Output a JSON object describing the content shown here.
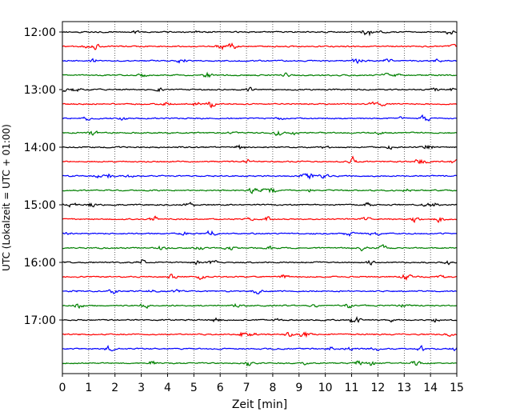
{
  "chart_data": {
    "type": "line",
    "title": "",
    "xlabel": "Zeit  [min]",
    "ylabel": "UTC (Lokalzeit = UTC + 01:00)",
    "xlim": [
      0,
      15
    ],
    "x_ticks": [
      0,
      1,
      2,
      3,
      4,
      5,
      6,
      7,
      8,
      9,
      10,
      11,
      12,
      13,
      14,
      15
    ],
    "x_tick_labels": [
      "0",
      "1",
      "2",
      "3",
      "4",
      "5",
      "6",
      "7",
      "8",
      "9",
      "10",
      "11",
      "12",
      "13",
      "14",
      "15"
    ],
    "y_tick_labels": [
      "12:00",
      "13:00",
      "14:00",
      "15:00",
      "16:00",
      "17:00"
    ],
    "vertical_grid": "dotted",
    "trace_colors": [
      "#000000",
      "#ff0000",
      "#0000ff",
      "#008000"
    ],
    "series": [
      {
        "start": "12:00",
        "color": "#000000",
        "seed": 11
      },
      {
        "start": "12:15",
        "color": "#ff0000",
        "seed": 23
      },
      {
        "start": "12:30",
        "color": "#0000ff",
        "seed": 37
      },
      {
        "start": "12:45",
        "color": "#008000",
        "seed": 41
      },
      {
        "start": "13:00",
        "color": "#000000",
        "seed": 53
      },
      {
        "start": "13:15",
        "color": "#ff0000",
        "seed": 67
      },
      {
        "start": "13:30",
        "color": "#0000ff",
        "seed": 71
      },
      {
        "start": "13:45",
        "color": "#008000",
        "seed": 83
      },
      {
        "start": "14:00",
        "color": "#000000",
        "seed": 97
      },
      {
        "start": "14:15",
        "color": "#ff0000",
        "seed": 101
      },
      {
        "start": "14:30",
        "color": "#0000ff",
        "seed": 113
      },
      {
        "start": "14:45",
        "color": "#008000",
        "seed": 127
      },
      {
        "start": "15:00",
        "color": "#000000",
        "seed": 131
      },
      {
        "start": "15:15",
        "color": "#ff0000",
        "seed": 149
      },
      {
        "start": "15:30",
        "color": "#0000ff",
        "seed": 151
      },
      {
        "start": "15:45",
        "color": "#008000",
        "seed": 163
      },
      {
        "start": "16:00",
        "color": "#000000",
        "seed": 173
      },
      {
        "start": "16:15",
        "color": "#ff0000",
        "seed": 181
      },
      {
        "start": "16:30",
        "color": "#0000ff",
        "seed": 191
      },
      {
        "start": "16:45",
        "color": "#008000",
        "seed": 197
      },
      {
        "start": "17:00",
        "color": "#000000",
        "seed": 211
      },
      {
        "start": "17:15",
        "color": "#ff0000",
        "seed": 223
      },
      {
        "start": "17:30",
        "color": "#0000ff",
        "seed": 227
      },
      {
        "start": "17:45",
        "color": "#008000",
        "seed": 239
      }
    ]
  }
}
